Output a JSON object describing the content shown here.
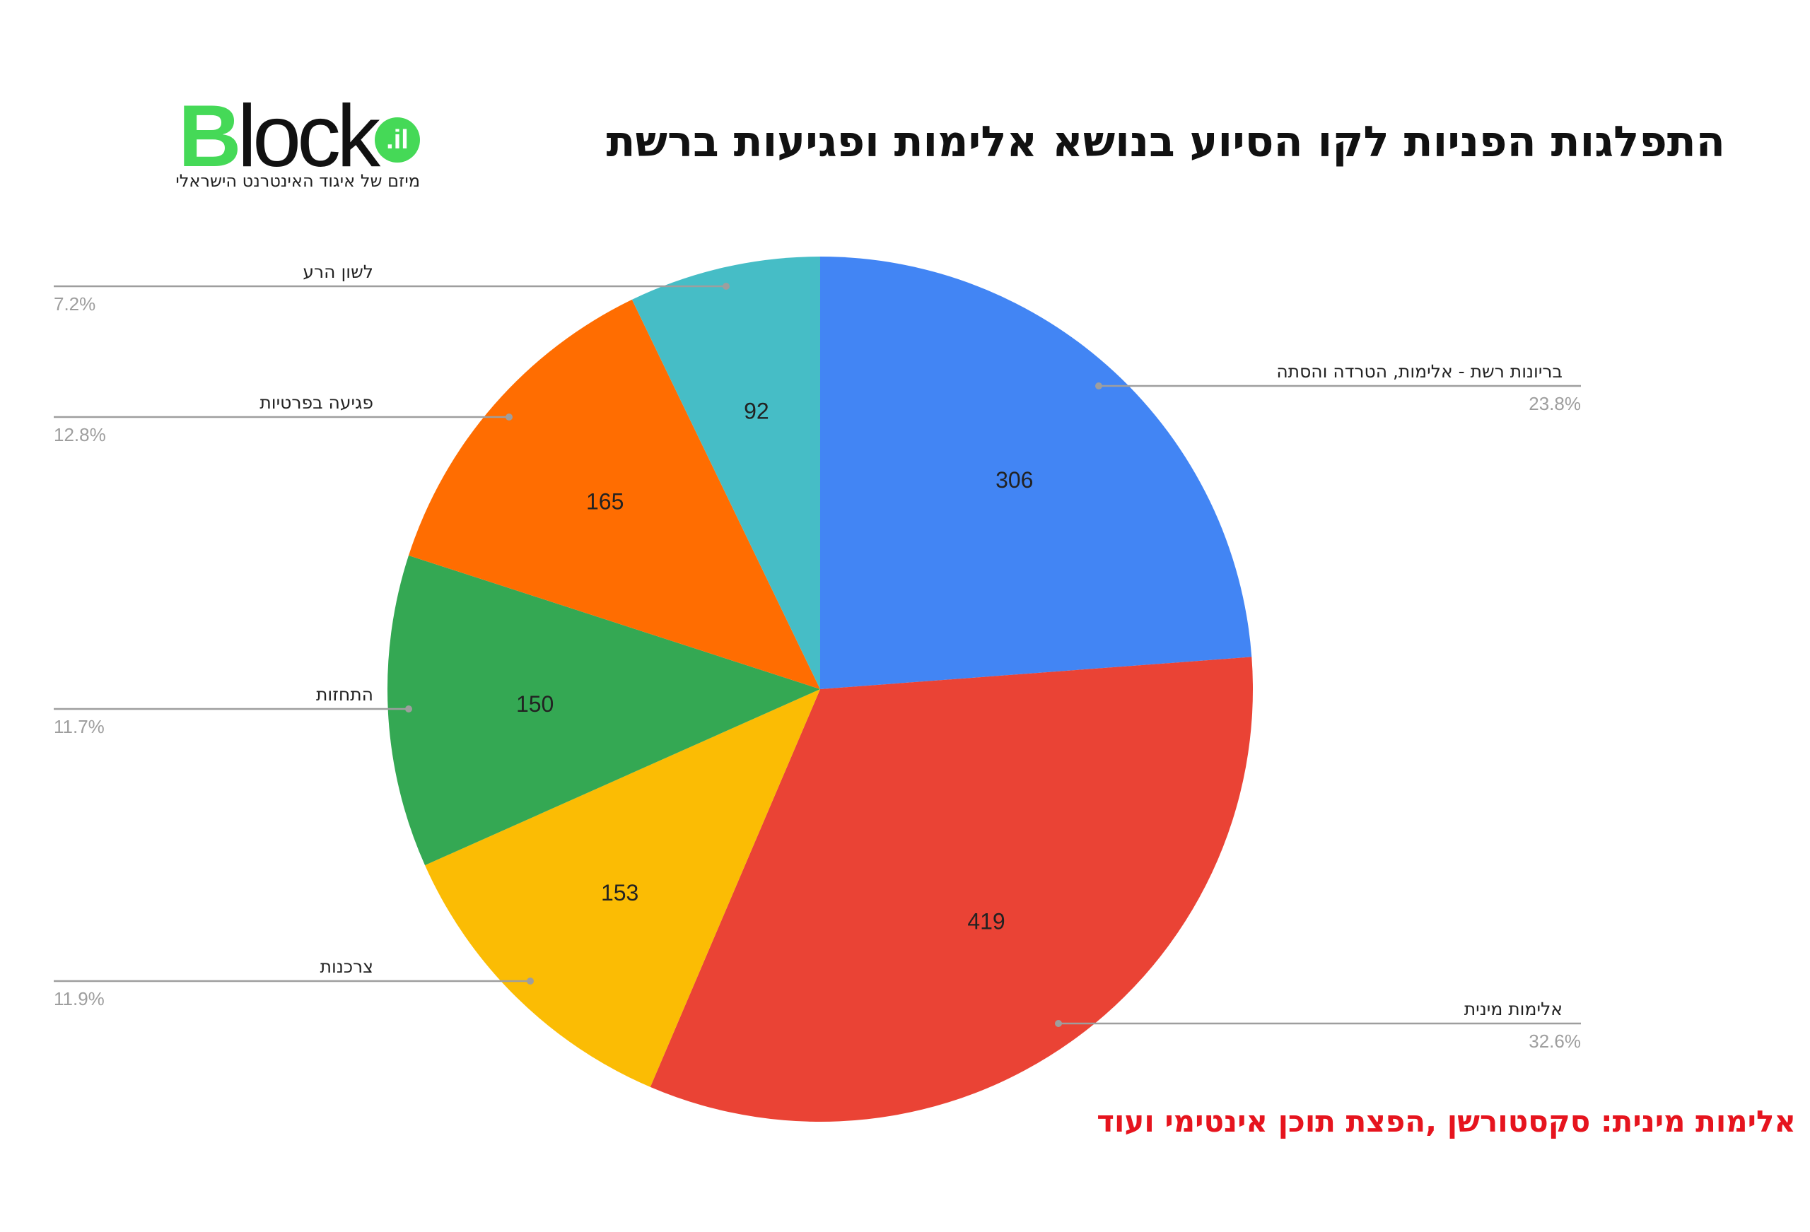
{
  "logo": {
    "first_letter": "B",
    "rest": "lock",
    "badge": ".il",
    "tagline": "מיזם של איגוד האינטרנט הישראלי"
  },
  "footnote": "אלימות מינית: סקסטורשן ,הפצת תוכן אינטימי ועוד",
  "chart_data": {
    "type": "pie",
    "title": "התפלגות הפניות לקו הסיוע בנושא אלימות ופגיעות ברשת",
    "legend": "none",
    "slices": [
      {
        "label": "בריונות רשת - אלימות, הטרדה והסתה",
        "value": 306,
        "percent": "23.8%",
        "color": "#4285f4"
      },
      {
        "label": "אלימות מינית",
        "value": 419,
        "percent": "32.6%",
        "color": "#ea4335"
      },
      {
        "label": "צרכנות",
        "value": 153,
        "percent": "11.9%",
        "color": "#fbbc04"
      },
      {
        "label": "התחזות",
        "value": 150,
        "percent": "11.7%",
        "color": "#34a853"
      },
      {
        "label": "פגיעה בפרטיות",
        "value": 165,
        "percent": "12.8%",
        "color": "#ff6d01"
      },
      {
        "label": "לשון הרע",
        "value": 92,
        "percent": "7.2%",
        "color": "#46bdc6"
      }
    ]
  }
}
